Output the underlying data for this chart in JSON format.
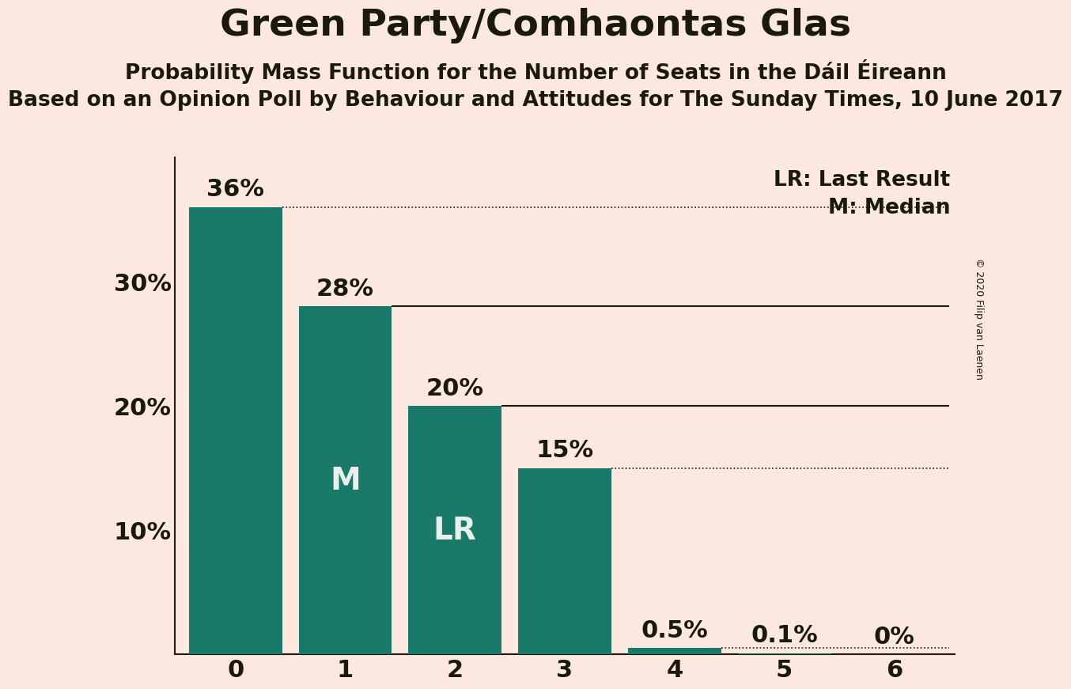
{
  "title": "Green Party/Comhaontas Glas",
  "subtitle": "Probability Mass Function for the Number of Seats in the Dáil Éireann",
  "subtitle2": "Based on an Opinion Poll by Behaviour and Attitudes for The Sunday Times, 10 June 2017",
  "copyright": "© 2020 Filip van Laenen",
  "categories": [
    0,
    1,
    2,
    3,
    4,
    5,
    6
  ],
  "values": [
    36,
    28,
    20,
    15,
    0.5,
    0.1,
    0
  ],
  "bar_color": "#1a7a6a",
  "background_color": "#fce8df",
  "text_color": "#1a1a0a",
  "label_color_inside": "#e8f0ec",
  "ylim": [
    0,
    40
  ],
  "yticks": [
    10,
    20,
    30
  ],
  "ytick_labels": [
    "10%",
    "20%",
    "30%"
  ],
  "median_bar_idx": 1,
  "lr_bar_idx": 2,
  "lr_label": "LR",
  "median_label": "M",
  "lr_legend": "LR: Last Result",
  "median_legend": "M: Median",
  "solid_line_bar_idxs": [
    1,
    2
  ],
  "dotted_line_bar_idxs": [
    0,
    3,
    4
  ],
  "title_fontsize": 34,
  "subtitle_fontsize": 19,
  "subtitle2_fontsize": 19,
  "axis_fontsize": 22,
  "bar_label_fontsize": 22,
  "inside_label_fontsize": 28,
  "legend_fontsize": 19,
  "copyright_fontsize": 9
}
